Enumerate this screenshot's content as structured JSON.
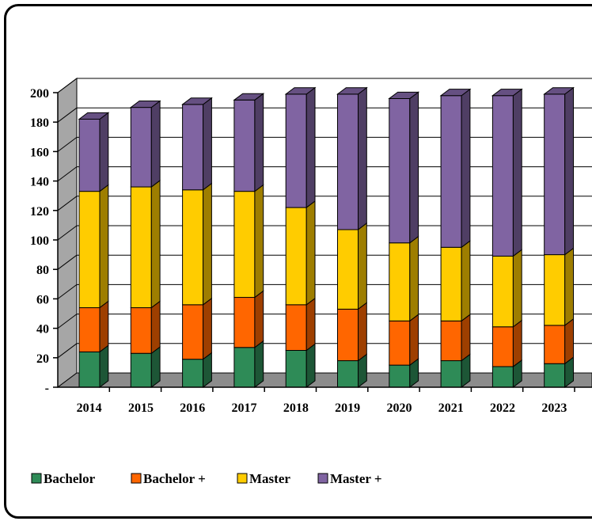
{
  "chart_data": {
    "type": "bar",
    "stacked": true,
    "three_d": true,
    "categories": [
      "2014",
      "2015",
      "2016",
      "2017",
      "2018",
      "2019",
      "2020",
      "2021",
      "2022",
      "2023"
    ],
    "series": [
      {
        "name": "Bachelor",
        "color": "#2e8b57",
        "values": [
          24,
          23,
          19,
          27,
          25,
          18,
          15,
          18,
          14,
          16
        ]
      },
      {
        "name": "Bachelor +",
        "color": "#ff6600",
        "values": [
          30,
          31,
          37,
          34,
          31,
          35,
          30,
          27,
          27,
          26
        ]
      },
      {
        "name": "Master",
        "color": "#ffcc00",
        "values": [
          79,
          82,
          78,
          72,
          66,
          54,
          53,
          50,
          48,
          48
        ]
      },
      {
        "name": "Master +",
        "color": "#8064a2",
        "values": [
          49,
          54,
          58,
          62,
          77,
          92,
          98,
          103,
          109,
          109
        ]
      }
    ],
    "y_ticks": [
      "-",
      "20",
      "40",
      "60",
      "80",
      "100",
      "120",
      "140",
      "160",
      "180",
      "200"
    ],
    "ylim": [
      0,
      200
    ],
    "grid": true,
    "legend": "bottom-left"
  }
}
